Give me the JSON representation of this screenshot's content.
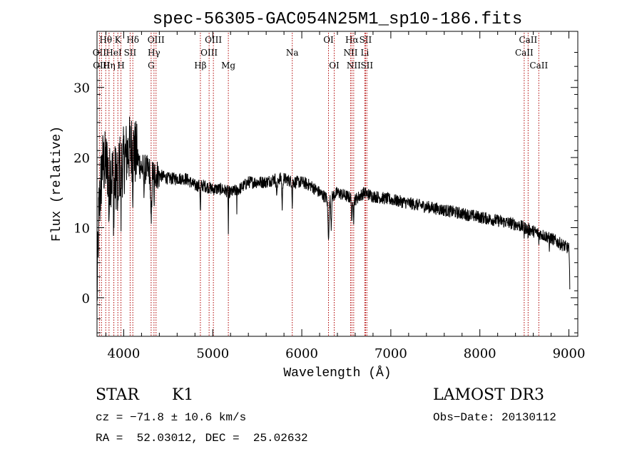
{
  "chart_data": {
    "type": "line",
    "title": "spec-56305-GAC054N25M1_sp10-186.fits",
    "xlabel": "Wavelength (Å)",
    "ylabel": "Flux (relative)",
    "xlim": [
      3700,
      9100
    ],
    "ylim": [
      -5.5,
      38
    ],
    "x_ticks": [
      4000,
      5000,
      6000,
      7000,
      8000,
      9000
    ],
    "x_tick_labels": [
      "4000",
      "5000",
      "6000",
      "7000",
      "8000",
      "9000"
    ],
    "y_ticks": [
      0,
      10,
      20,
      30
    ],
    "y_tick_labels": [
      "0",
      "10",
      "20",
      "30"
    ],
    "line_color": "#000000",
    "marker_color": "#b00000",
    "continuum": [
      [
        3700,
        0
      ],
      [
        3720,
        12
      ],
      [
        3760,
        19
      ],
      [
        3800,
        19
      ],
      [
        3850,
        18
      ],
      [
        3900,
        17
      ],
      [
        3950,
        18.5
      ],
      [
        4000,
        19.5
      ],
      [
        4050,
        21
      ],
      [
        4100,
        21.5
      ],
      [
        4200,
        18.5
      ],
      [
        4300,
        18
      ],
      [
        4400,
        17.5
      ],
      [
        4500,
        17
      ],
      [
        4600,
        17
      ],
      [
        4700,
        17
      ],
      [
        4800,
        16
      ],
      [
        4900,
        16
      ],
      [
        5000,
        15.5
      ],
      [
        5100,
        15.5
      ],
      [
        5200,
        15
      ],
      [
        5300,
        15.5
      ],
      [
        5400,
        16.5
      ],
      [
        5500,
        16.5
      ],
      [
        5600,
        16.5
      ],
      [
        5700,
        17
      ],
      [
        5800,
        17
      ],
      [
        5900,
        16.5
      ],
      [
        6000,
        16.5
      ],
      [
        6100,
        16
      ],
      [
        6200,
        15
      ],
      [
        6300,
        14
      ],
      [
        6400,
        15
      ],
      [
        6500,
        14.5
      ],
      [
        6600,
        14
      ],
      [
        6700,
        15
      ],
      [
        6800,
        14.5
      ],
      [
        7000,
        14
      ],
      [
        7200,
        13.5
      ],
      [
        7400,
        13
      ],
      [
        7600,
        12.5
      ],
      [
        7800,
        12
      ],
      [
        8000,
        11.5
      ],
      [
        8200,
        11
      ],
      [
        8400,
        10.5
      ],
      [
        8600,
        9.5
      ],
      [
        8800,
        8.5
      ],
      [
        9000,
        7
      ],
      [
        9010,
        2
      ]
    ],
    "absorption_features": [
      [
        3835,
        6,
        6
      ],
      [
        3889,
        5,
        7
      ],
      [
        3934,
        4,
        9
      ],
      [
        3969,
        4,
        8
      ],
      [
        4102,
        3,
        5
      ],
      [
        4226,
        3,
        4
      ],
      [
        4308,
        8,
        8
      ],
      [
        4340,
        4,
        5
      ],
      [
        4861,
        4,
        4
      ],
      [
        5175,
        3,
        6
      ],
      [
        5270,
        2,
        3
      ],
      [
        5720,
        10,
        2
      ],
      [
        5780,
        6,
        4
      ],
      [
        5893,
        3,
        4
      ],
      [
        6300,
        10,
        5
      ],
      [
        6330,
        6,
        4
      ],
      [
        6563,
        5,
        4
      ],
      [
        6583,
        4,
        3
      ],
      [
        8498,
        2,
        1.5
      ],
      [
        8542,
        2,
        2
      ],
      [
        8662,
        2,
        2
      ],
      [
        8780,
        3,
        2
      ]
    ],
    "noise_bands": [
      [
        3700,
        4150,
        5
      ],
      [
        4150,
        4400,
        2.2
      ],
      [
        4400,
        9100,
        0.9
      ]
    ],
    "spectral_lines": [
      {
        "label": "Hθ",
        "x": 3798,
        "row": 0
      },
      {
        "label": "K",
        "x": 3934,
        "row": 0
      },
      {
        "label": "Hδ",
        "x": 4102,
        "row": 0
      },
      {
        "label": "OII",
        "x": 3727,
        "row": 1
      },
      {
        "label": "HeI",
        "x": 3889,
        "row": 1
      },
      {
        "label": "SII",
        "x": 4072,
        "row": 1
      },
      {
        "label": "OIII",
        "x": 4363,
        "row": 0
      },
      {
        "label": "Hγ",
        "x": 4340,
        "row": 1
      },
      {
        "label": "OIII",
        "x": 3750,
        "row": 2
      },
      {
        "label": "Hη",
        "x": 3835,
        "row": 2
      },
      {
        "label": "H",
        "x": 3969,
        "row": 2
      },
      {
        "label": "G",
        "x": 4308,
        "row": 2
      },
      {
        "label": "OIII",
        "x": 5007,
        "row": 0
      },
      {
        "label": "OIII",
        "x": 4959,
        "row": 1
      },
      {
        "label": "Hβ",
        "x": 4861,
        "row": 2
      },
      {
        "label": "Mg",
        "x": 5175,
        "row": 2
      },
      {
        "label": "Na",
        "x": 5893,
        "row": 1
      },
      {
        "label": "OI",
        "x": 6300,
        "row": 0
      },
      {
        "label": "OI",
        "x": 6364,
        "row": 2
      },
      {
        "label": "Hα",
        "x": 6563,
        "row": 0
      },
      {
        "label": "SII",
        "x": 6716,
        "row": 0
      },
      {
        "label": "NII",
        "x": 6548,
        "row": 1
      },
      {
        "label": "Li",
        "x": 6708,
        "row": 1
      },
      {
        "label": "NII",
        "x": 6583,
        "row": 2
      },
      {
        "label": "SII",
        "x": 6731,
        "row": 2
      },
      {
        "label": "CaII",
        "x": 8542,
        "row": 0
      },
      {
        "label": "CaII",
        "x": 8498,
        "row": 1
      },
      {
        "label": "CaII",
        "x": 8662,
        "row": 2
      }
    ]
  },
  "info": {
    "object_class": "STAR",
    "subclass": "K1",
    "survey": "LAMOST DR3",
    "redshift": "cz = −71.8 ± 10.6 km/s",
    "obs_date": "Obs−Date: 20130112",
    "coords": "RA =  52.03012, DEC =  25.02632"
  }
}
